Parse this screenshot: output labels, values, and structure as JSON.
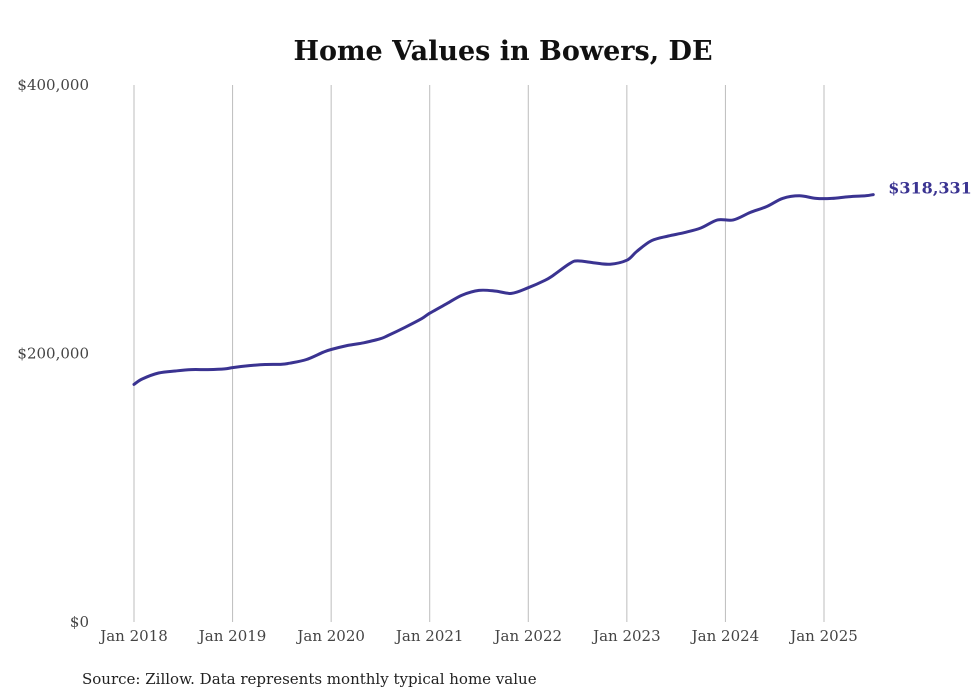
{
  "chart_data": {
    "type": "line",
    "title": "Home Values in Bowers, DE",
    "source": "Source: Zillow. Data represents monthly typical home value",
    "xlabel": "",
    "ylabel": "",
    "ylim": [
      0,
      400000
    ],
    "yticks": [
      {
        "value": 0,
        "label": "$0"
      },
      {
        "value": 200000,
        "label": "$200,000"
      },
      {
        "value": 400000,
        "label": "$400,000"
      }
    ],
    "xticks": [
      {
        "year": 2018,
        "label": "Jan 2018"
      },
      {
        "year": 2019,
        "label": "Jan 2019"
      },
      {
        "year": 2020,
        "label": "Jan 2020"
      },
      {
        "year": 2021,
        "label": "Jan 2021"
      },
      {
        "year": 2022,
        "label": "Jan 2022"
      },
      {
        "year": 2023,
        "label": "Jan 2023"
      },
      {
        "year": 2024,
        "label": "Jan 2024"
      },
      {
        "year": 2025,
        "label": "Jan 2025"
      }
    ],
    "grid": "vertical",
    "line_color": "#3a3391",
    "end_label": "$318,331",
    "series": [
      {
        "name": "Typical home value",
        "x": [
          2018.0,
          2018.083,
          2018.25,
          2018.42,
          2018.58,
          2018.75,
          2018.92,
          2019.0,
          2019.17,
          2019.33,
          2019.5,
          2019.58,
          2019.75,
          2019.92,
          2020.0,
          2020.17,
          2020.33,
          2020.5,
          2020.58,
          2020.75,
          2020.92,
          2021.0,
          2021.17,
          2021.33,
          2021.5,
          2021.67,
          2021.83,
          2022.0,
          2022.17,
          2022.25,
          2022.42,
          2022.5,
          2022.67,
          2022.83,
          2023.0,
          2023.1,
          2023.25,
          2023.42,
          2023.58,
          2023.75,
          2023.92,
          2024.08,
          2024.25,
          2024.42,
          2024.58,
          2024.75,
          2024.92,
          2025.08,
          2025.25,
          2025.42,
          2025.5
        ],
        "values": [
          177000,
          181000,
          185500,
          187000,
          188000,
          188000,
          188500,
          189500,
          191000,
          191800,
          192000,
          192800,
          195500,
          201000,
          203000,
          206000,
          208000,
          211000,
          213500,
          219500,
          226000,
          230000,
          237000,
          243500,
          247000,
          246500,
          244800,
          249000,
          254500,
          258000,
          267000,
          269000,
          267500,
          266500,
          269500,
          276000,
          284000,
          287500,
          290000,
          293500,
          299500,
          299500,
          305000,
          309500,
          315500,
          317500,
          315500,
          315500,
          316800,
          317500,
          318331
        ]
      }
    ]
  }
}
